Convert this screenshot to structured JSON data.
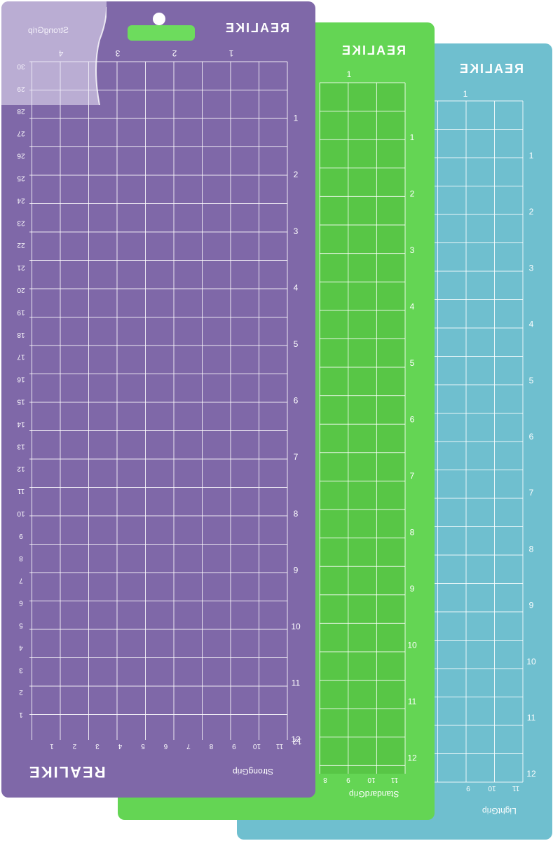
{
  "mats": {
    "blue": {
      "brand": "REALIKE",
      "grip": "LightGrip",
      "color": "#6fbfcf"
    },
    "green": {
      "brand": "REALIKE",
      "grip": "StandardGrip",
      "color": "#64d554",
      "grid_color": "#58c646"
    },
    "purple": {
      "brand": "REALIKE",
      "brand_bottom": "REALIKE",
      "grip_top": "StrongGrip",
      "grip_bottom": "StrongGrip",
      "color": "#7f68a8"
    }
  },
  "scales": {
    "inch_vertical": [
      "1",
      "2",
      "3",
      "4",
      "5",
      "6",
      "7",
      "8",
      "9",
      "10",
      "11",
      "12"
    ],
    "inch_top_purple": [
      "1",
      "2",
      "3",
      "4"
    ],
    "inch_top_single": [
      "1"
    ],
    "purple_left_cm": [
      "30",
      "29",
      "28",
      "27",
      "26",
      "25",
      "24",
      "23",
      "22",
      "21",
      "20",
      "19",
      "18",
      "17",
      "16",
      "15",
      "14",
      "13",
      "12",
      "11",
      "10",
      "9",
      "8",
      "7",
      "6",
      "5",
      "4",
      "3",
      "2",
      "1"
    ],
    "purple_bottom_cm": [
      "1",
      "2",
      "3",
      "4",
      "5",
      "6",
      "7",
      "8",
      "9",
      "10",
      "11"
    ],
    "green_bottom_cm": [
      "8",
      "9",
      "10",
      "11"
    ],
    "blue_bottom_cm": [
      "9",
      "10",
      "11"
    ]
  }
}
